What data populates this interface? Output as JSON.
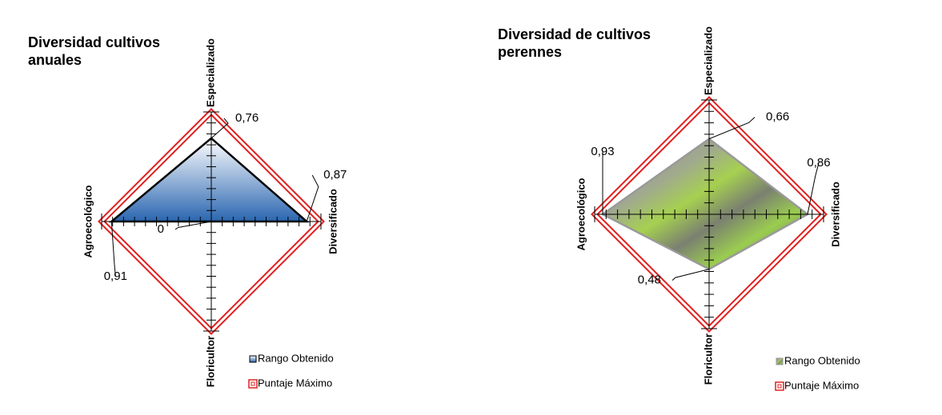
{
  "chart_data": [
    {
      "type": "radar",
      "title": "Diversidad cultivos anuales",
      "categories": [
        "Especializado",
        "Diversificado",
        "Floricultor",
        "Agroecológico"
      ],
      "rlim": [
        0,
        1
      ],
      "rticks": [
        0,
        0.1,
        0.2,
        0.3,
        0.4,
        0.5,
        0.6,
        0.7,
        0.8,
        0.9,
        1
      ],
      "series": [
        {
          "name": "Rango Obtenido",
          "color": "#2a66b0",
          "values": [
            0.76,
            0.87,
            0,
            0.91
          ],
          "value_labels": [
            "0,76",
            "0,87",
            "0",
            "0,91"
          ]
        },
        {
          "name": "Puntaje Máximo",
          "color": "#e02020",
          "values": [
            1,
            1,
            1,
            1
          ]
        }
      ]
    },
    {
      "type": "radar",
      "title": "Diversidad de cultivos perennes",
      "categories": [
        "Especializado",
        "Diversificado",
        "Floricultor",
        "Agroecológico"
      ],
      "rlim": [
        0,
        1
      ],
      "rticks": [
        0,
        0.1,
        0.2,
        0.3,
        0.4,
        0.5,
        0.6,
        0.7,
        0.8,
        0.9,
        1
      ],
      "series": [
        {
          "name": "Rango Obtenido",
          "color": "#8a9a6a",
          "values": [
            0.66,
            0.86,
            0.48,
            0.93
          ],
          "value_labels": [
            "0,66",
            "0,86",
            "0,48",
            "0,93"
          ]
        },
        {
          "name": "Puntaje Máximo",
          "color": "#e02020",
          "values": [
            1,
            1,
            1,
            1
          ]
        }
      ]
    }
  ]
}
